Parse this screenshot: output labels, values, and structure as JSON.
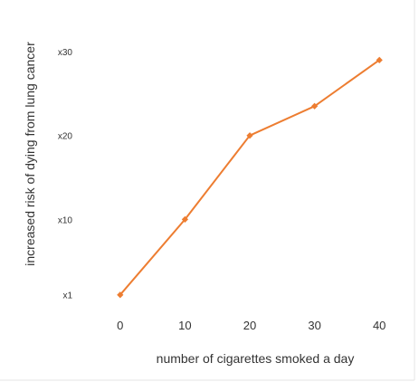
{
  "chart_data": {
    "type": "line",
    "xlabel": "number of cigarettes smoked a day",
    "ylabel": "increased risk of dying from lung cancer",
    "x": [
      0,
      10,
      20,
      30,
      40
    ],
    "x_ticks": [
      "0",
      "10",
      "20",
      "30",
      "40"
    ],
    "xlim": [
      -5,
      45
    ],
    "y_ticks": [
      {
        "label": "x1",
        "value": 1
      },
      {
        "label": "x10",
        "value": 10
      },
      {
        "label": "x20",
        "value": 20
      },
      {
        "label": "x30",
        "value": 30
      }
    ],
    "ylim": [
      0,
      34
    ],
    "series": [
      {
        "values": [
          1,
          10,
          20,
          23.5,
          29
        ],
        "color": "#ED7D31"
      }
    ],
    "grid": false,
    "legend": "none"
  }
}
